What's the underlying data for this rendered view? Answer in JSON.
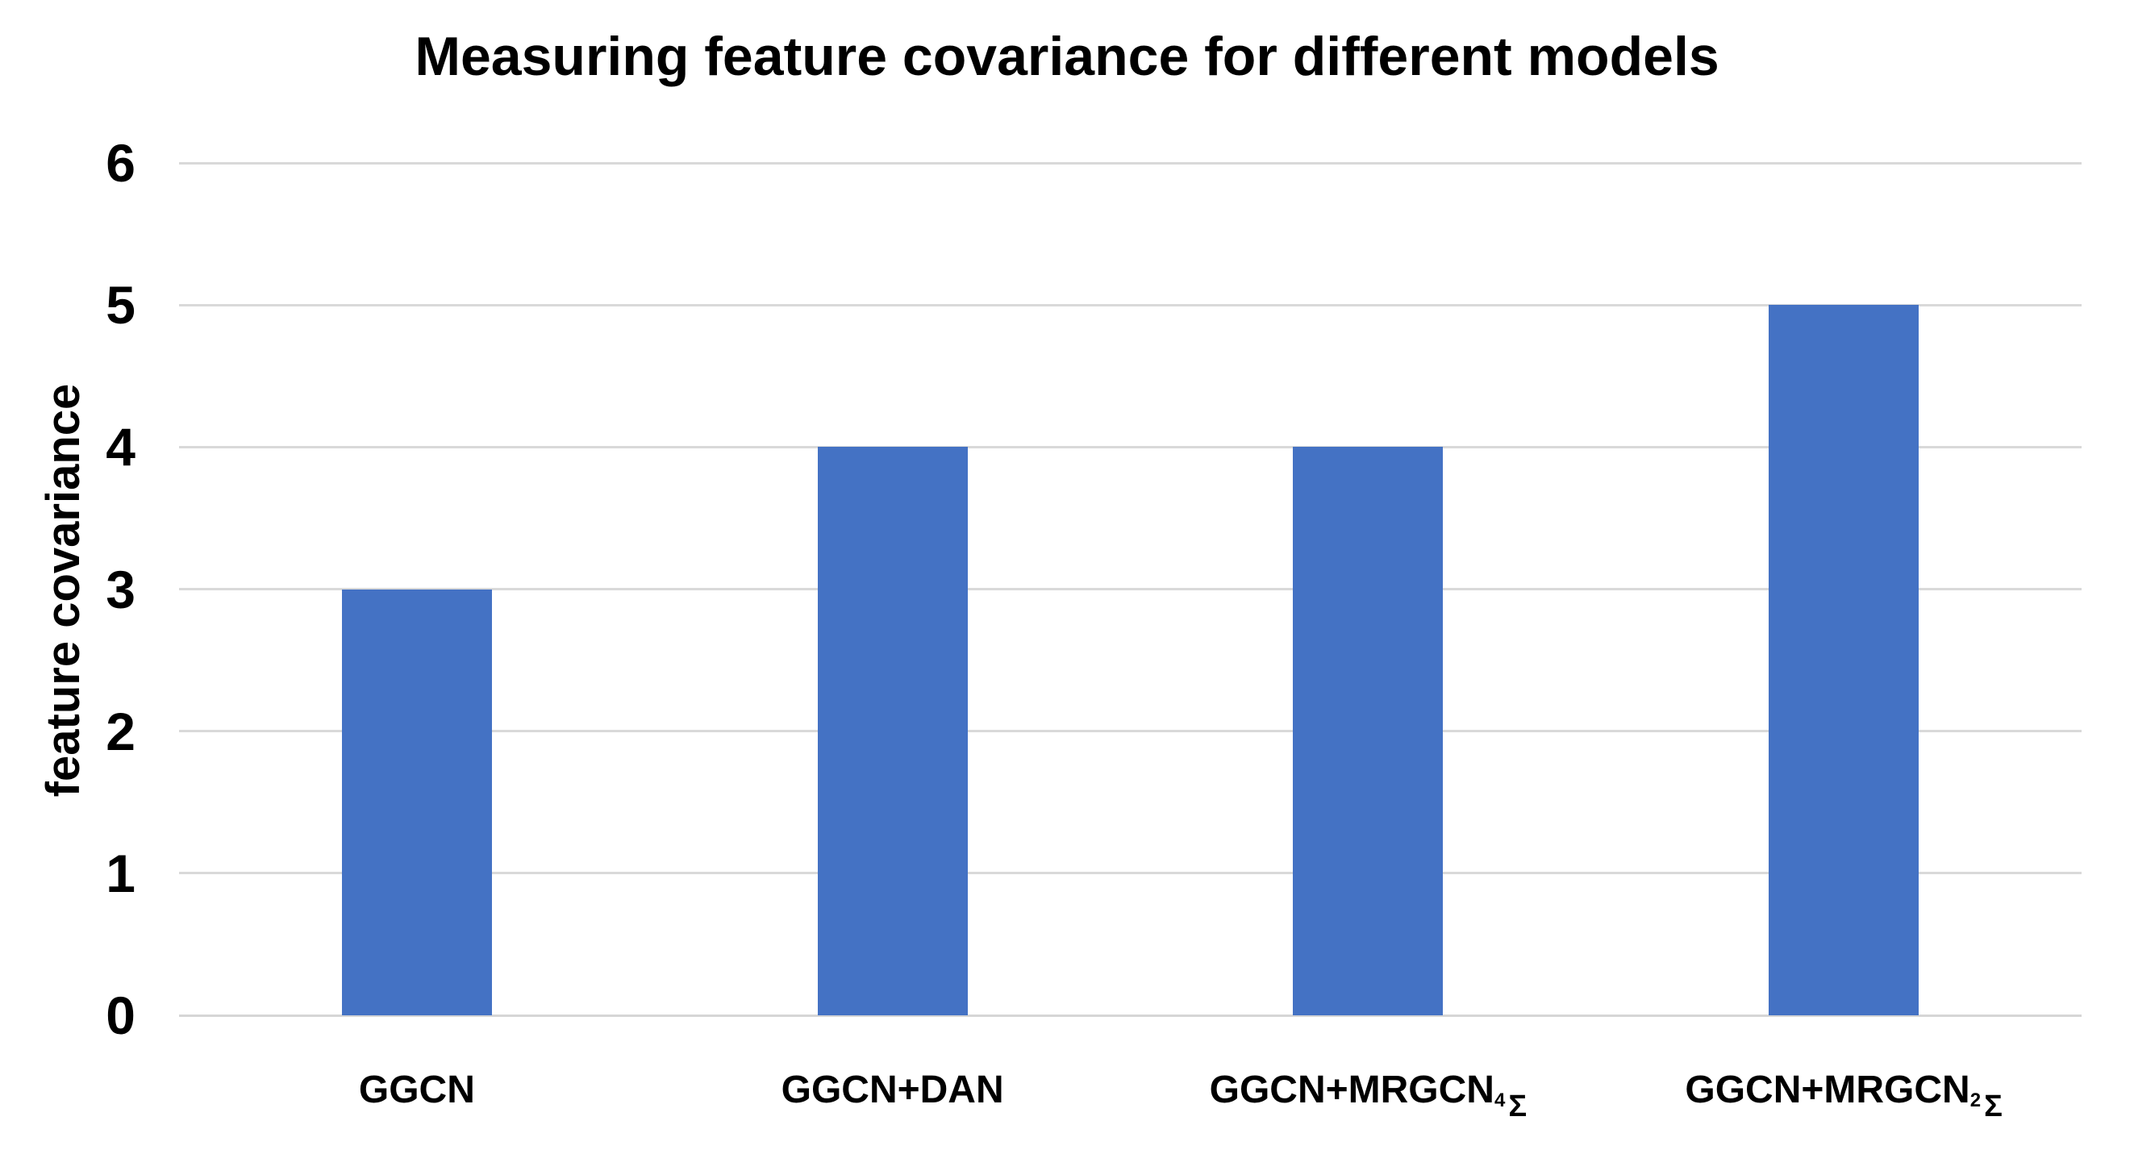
{
  "chart_data": {
    "type": "bar",
    "title": "Measuring feature covariance for different models",
    "xlabel": "",
    "ylabel": "feature covariance",
    "categories": [
      "GGCN",
      "GGCN+DAN",
      "GGCN+MRGCN₄Σ",
      "GGCN+MRGCN₂Σ"
    ],
    "categories_rich": [
      {
        "base": "GGCN",
        "sub": ""
      },
      {
        "base": "GGCN+DAN",
        "sub": ""
      },
      {
        "base": "GGCN+MRGCN",
        "sub": "4Σ"
      },
      {
        "base": "GGCN+MRGCN",
        "sub": "2Σ"
      }
    ],
    "values": [
      3,
      4,
      4,
      5
    ],
    "ylim": [
      0,
      6
    ],
    "yticks": [
      0,
      1,
      2,
      3,
      4,
      5,
      6
    ],
    "grid": true,
    "legend": "none",
    "colors": {
      "bar": "#4472C4",
      "gridline": "#D9D9D9",
      "axis_line": "#D6D6D6",
      "text": "#000000",
      "background": "#FFFFFF"
    }
  }
}
